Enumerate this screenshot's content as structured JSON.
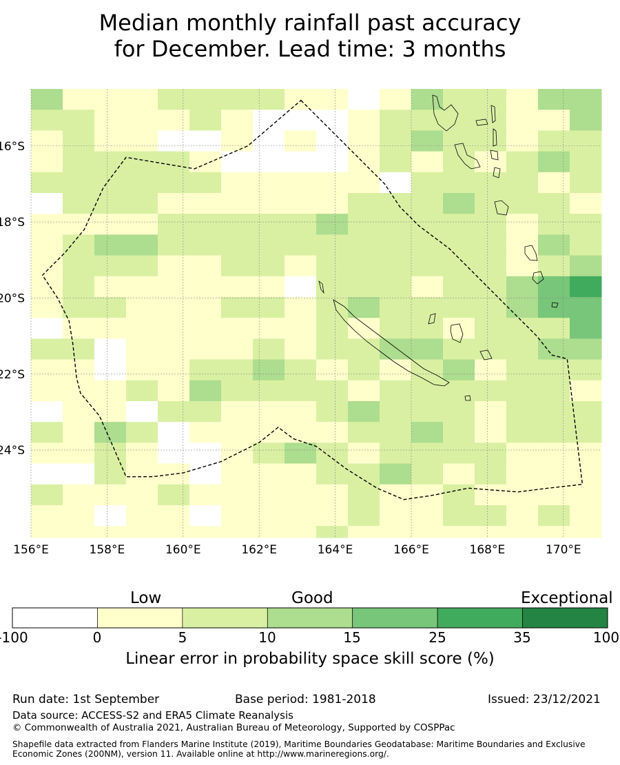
{
  "title": {
    "line1": "Median monthly rainfall past accuracy",
    "line2": "for December. Lead time: 3 months"
  },
  "map": {
    "lon_range": [
      156,
      171
    ],
    "lat_range": [
      -26.3,
      -14.5
    ],
    "lon_ticks": [
      "156°E",
      "158°E",
      "160°E",
      "162°E",
      "164°E",
      "166°E",
      "168°E",
      "170°E"
    ],
    "lat_ticks": [
      "16°S",
      "18°S",
      "20°S",
      "22°S",
      "24°S"
    ],
    "lon_tick_values": [
      156,
      158,
      160,
      162,
      164,
      166,
      168,
      170
    ],
    "lat_tick_values": [
      -16,
      -18,
      -20,
      -22,
      -24
    ],
    "grid_cell_deg": 0.833,
    "grid_lines": true,
    "eez_boundary": [
      [
        163.1,
        -14.8
      ],
      [
        164.6,
        -16.3
      ],
      [
        165.3,
        -17.0
      ],
      [
        165.7,
        -17.6
      ],
      [
        166.2,
        -18.1
      ],
      [
        167.0,
        -18.7
      ],
      [
        167.6,
        -19.3
      ],
      [
        168.5,
        -20.2
      ],
      [
        169.3,
        -21.0
      ],
      [
        169.7,
        -21.5
      ],
      [
        170.1,
        -21.6
      ],
      [
        170.5,
        -24.9
      ],
      [
        169.6,
        -25.0
      ],
      [
        168.8,
        -25.1
      ],
      [
        167.5,
        -25.0
      ],
      [
        166.5,
        -25.2
      ],
      [
        165.8,
        -25.3
      ],
      [
        165.1,
        -25.0
      ],
      [
        164.3,
        -24.5
      ],
      [
        163.5,
        -23.9
      ],
      [
        162.9,
        -23.7
      ],
      [
        162.5,
        -23.4
      ],
      [
        162.0,
        -23.8
      ],
      [
        161.0,
        -24.3
      ],
      [
        160.0,
        -24.6
      ],
      [
        159.2,
        -24.7
      ],
      [
        158.5,
        -24.7
      ],
      [
        158.2,
        -24.0
      ],
      [
        157.8,
        -23.1
      ],
      [
        157.3,
        -22.5
      ],
      [
        157.2,
        -22.1
      ],
      [
        157.1,
        -21.2
      ],
      [
        157.0,
        -20.6
      ],
      [
        156.7,
        -20.0
      ],
      [
        156.3,
        -19.4
      ],
      [
        156.9,
        -18.8
      ],
      [
        157.4,
        -18.2
      ],
      [
        157.9,
        -17.1
      ],
      [
        158.5,
        -16.3
      ],
      [
        160.3,
        -16.6
      ],
      [
        161.7,
        -16.0
      ]
    ]
  },
  "colorbar": {
    "headings": [
      "Low",
      "Good",
      "Exceptional"
    ],
    "tick_labels": [
      "-100",
      "0",
      "5",
      "10",
      "15",
      "25",
      "35",
      "100"
    ],
    "colors": [
      "#ffffff",
      "#ffffcc",
      "#d9f0a3",
      "#addd8e",
      "#78c679",
      "#41ab5d",
      "#238443"
    ],
    "label": "Linear error in probability space skill score (%)"
  },
  "footer": {
    "run_date": "Run date: 1st September",
    "base_period": "Base period: 1981-2018",
    "issued": "Issued: 23/12/2021",
    "data_source": "Data source: ACCESS-S2 and ERA5 Climate Reanalysis",
    "copyright": "© Commonwealth of Australia 2021, Australian Bureau of Meteorology, Supported by COSPPac",
    "shapefile": "Shapefile data extracted from Flanders Marine Institute (2019), Maritime Boundaries Geodatabase: Maritime Boundaries and Exclusive Economic Zones (200NM), version 11. Available online at http://www.marineregions.org/."
  }
}
